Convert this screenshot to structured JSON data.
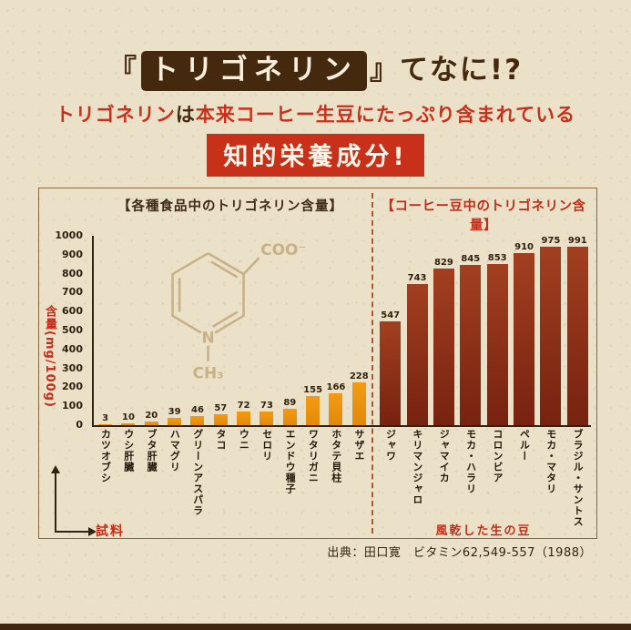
{
  "palette": {
    "dark_brown": "#45290e",
    "red": "#c9301a",
    "beige": "#ebe1c9",
    "food_bar_orange": "#ef9612",
    "coffee_bar_maroon": "#8e2f17"
  },
  "header": {
    "title": {
      "open_bracket": "『",
      "highlight": "トリゴネリン",
      "close_bracket": "』",
      "suffix": "てなに!?"
    },
    "subtitle": {
      "lead": "トリゴネリン",
      "particle": "は",
      "rest": "本来コーヒー生豆にたっぷり含まれている"
    },
    "badge": "知的栄養成分!"
  },
  "chart": {
    "left_header": "【各種食品中のトリゴネリン含量】",
    "right_header": "【コーヒー豆中のトリゴネリン含量】",
    "y_axis_label": "含量(mg/100g)",
    "x_axis_label": "試料",
    "coffee_axis_label": "風乾した生の豆",
    "y_ticks": [
      1000,
      900,
      800,
      700,
      600,
      500,
      400,
      300,
      200,
      100,
      0
    ]
  },
  "molecule": {
    "coo": "COO⁻",
    "n": "N",
    "ch3": "CH₃"
  },
  "chart_data": {
    "type": "bar",
    "group_titles": [
      "【各種食品中のトリゴネリン含量】",
      "【コーヒー豆中のトリゴネリン含量】"
    ],
    "ylabel": "含量(mg/100g)",
    "xlabel": "試料",
    "ylim": [
      0,
      1000
    ],
    "grid": false,
    "legend": "none",
    "series": [
      {
        "name": "各種食品",
        "color": "#f39a14",
        "color2": "#e2890a",
        "categories": [
          "カツオブシ",
          "ウシ肝臓",
          "ブタ肝臓",
          "ハマグリ",
          "グリーンアスパラ",
          "タコ",
          "ウニ",
          "セロリ",
          "エンドウ種子",
          "ワタリガニ",
          "ホタテ貝柱",
          "サザエ"
        ],
        "values": [
          3,
          10,
          20,
          39,
          46,
          57,
          72,
          73,
          89,
          155,
          166,
          228
        ]
      },
      {
        "name": "コーヒー豆(風乾した生の豆)",
        "color": "#a23f20",
        "color2": "#772210",
        "categories": [
          "ジャワ",
          "キリマンジャロ",
          "ジャマイカ",
          "モカ・ハラリ",
          "コロンビア",
          "ペルー",
          "モカ・マタリ",
          "ブラジル・サントス"
        ],
        "values": [
          547,
          743,
          829,
          845,
          853,
          910,
          975,
          991
        ]
      }
    ]
  },
  "footer": {
    "source": "出典：田口寛　ビタミン62,549-557（1988）"
  }
}
